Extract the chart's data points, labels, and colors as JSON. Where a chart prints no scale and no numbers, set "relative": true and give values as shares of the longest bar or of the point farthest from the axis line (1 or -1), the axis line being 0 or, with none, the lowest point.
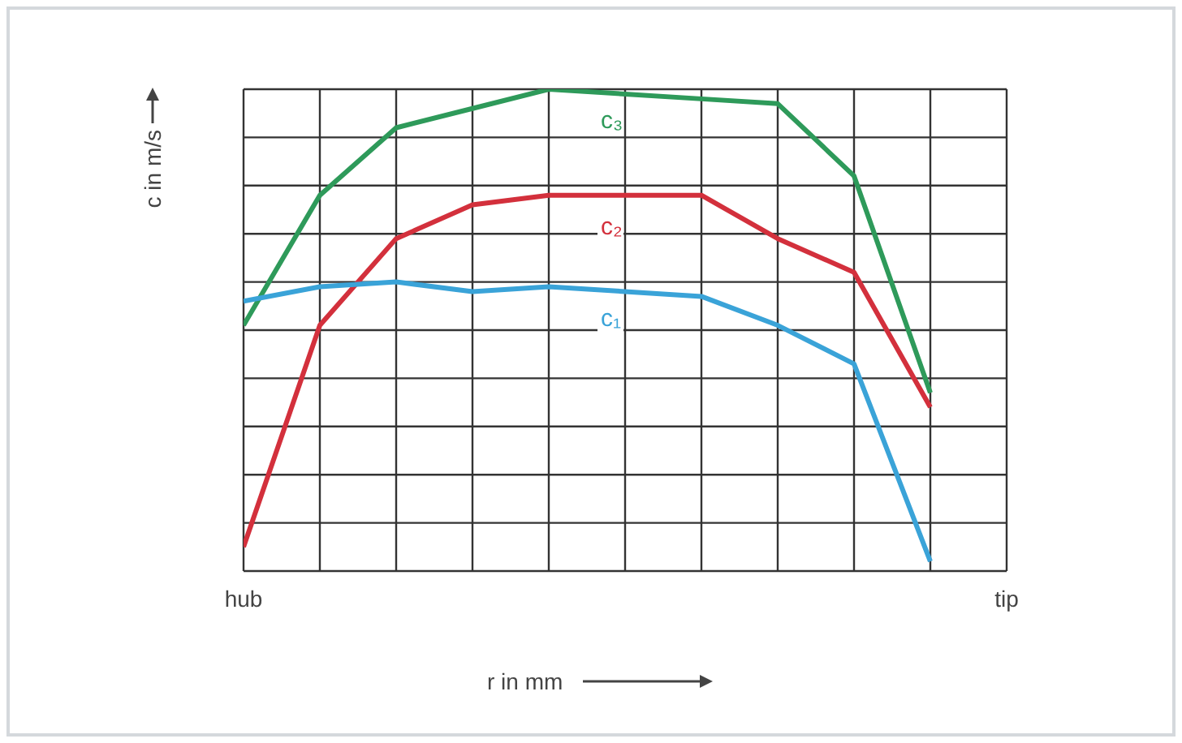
{
  "chart_data": {
    "type": "line",
    "relative": true,
    "xlabel": "r in mm",
    "ylabel": "c in m/s",
    "categories": [
      "hub",
      null,
      null,
      null,
      null,
      null,
      null,
      null,
      null,
      null,
      "tip"
    ],
    "series": [
      {
        "name": "c₃",
        "color": "#2e9a5a",
        "values": [
          0.51,
          0.78,
          0.92,
          0.96,
          1,
          null,
          0.98,
          0.97,
          0.82,
          0.37,
          null
        ]
      },
      {
        "name": "c₂",
        "color": "#d3303c",
        "values": [
          0.05,
          0.51,
          0.69,
          0.76,
          0.78,
          null,
          0.78,
          0.69,
          0.62,
          0.34,
          null
        ]
      },
      {
        "name": "c₁",
        "color": "#3aa3d8",
        "values": [
          0.56,
          0.59,
          0.6,
          0.58,
          0.59,
          null,
          0.57,
          0.51,
          0.43,
          0.02,
          null
        ]
      }
    ],
    "grid": true,
    "marker": "none",
    "line_style": "solid"
  }
}
